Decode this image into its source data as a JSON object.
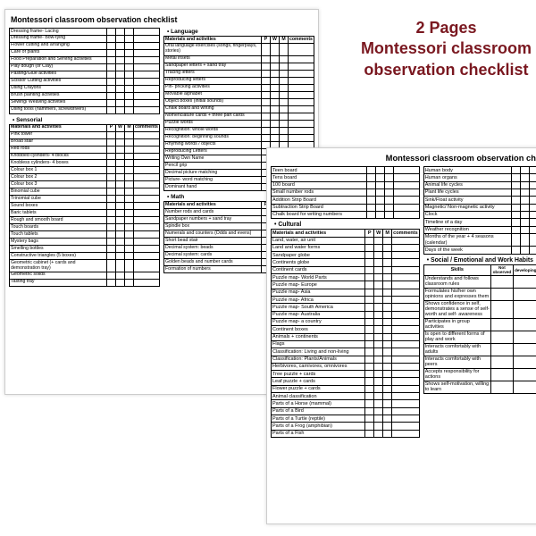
{
  "overlay": {
    "line1": "2 Pages",
    "line2": "Montessori classroom",
    "line3": "observation checklist"
  },
  "doc_title": "Montessori classroom observation checklist",
  "headers": {
    "mat": "Materials and activities",
    "p": "P",
    "w": "W",
    "m": "M",
    "comments": "comments"
  },
  "sections": {
    "practical": [
      "Dressing frame- Lacing",
      "Dressing frame- Bow-tying",
      "Flower cutting and arranging",
      "Care of plants",
      "Food Preparation and Serving activities",
      "Play dough (or Clay)",
      "Pasting/Glue activities",
      "Scissor Cutting activities",
      "Using Crayons",
      "Brush painting activities",
      "Sewing/ Weaving activities",
      "Using tools (hammers, screwdrivers)"
    ],
    "sensorial_label": "Sensorial",
    "sensorial": [
      "Pink tower",
      "Broad stair",
      "Red rods",
      "Knobbed cylinders- 4 blocks",
      "Knobless cylinders- 4 boxes",
      "Colour box 1",
      "Colour box 2",
      "Colour box 3",
      "Binomial cube",
      "Trinomial cube",
      "Sound boxes",
      "Baric tablets",
      "Rough and smooth board",
      "Touch boards",
      "Touch tablets",
      "Mystery bags",
      "Smelling bottles",
      "Constructive triangles (5 boxes)",
      "Geometric cabinet (+ cards and demonstration tray)",
      "Geometric solids",
      "Tasting tray"
    ],
    "language_label": "Language",
    "language": [
      "Oral language exercises (songs, fingerplays, stories)",
      "Metal insets",
      "Sandpaper letters + sand tray",
      "Tracing letters",
      "Reproducing letters",
      "Pin- pricking activities",
      "Movable alphabet",
      "Object boxes (initial sounds)",
      "Chalk board and writing",
      "Nomenclature cards + three part cards",
      "Puzzle words",
      "Recognition: whole words",
      "Recognition: beginning sounds",
      "Rhyming words / objects",
      "Reproducing Letters",
      "Writing Own Name",
      "Pencil grip",
      "Decimal picture matching",
      "Picture- word matching",
      "Dominant hand"
    ],
    "math_label": "Math",
    "math": [
      "Number rods and cards",
      "Sandpaper numbers + sand tray",
      "Spindle box",
      "Numerals and counters (Odds and evens)",
      "Short bead stair",
      "Decimal system: beads",
      "Decimal system: cards",
      "Golden beads and number cards",
      "Formation of numbers"
    ],
    "p2left_top": [
      "Teen board",
      "Tens board",
      "100 board",
      "Small number rods",
      "Addition Strip Board",
      "Subtraction Strip Board",
      "Chalk board for writing numbers"
    ],
    "cultural_label": "Cultural",
    "cultural": [
      "Land, water, air unit",
      "Land and water forms",
      "Sandpaper globe",
      "Continents globe",
      "Continent cards",
      "Puzzle map- World Parts",
      "Puzzle map- Europe",
      "Puzzle map- Asia",
      "Puzzle map- Africa",
      "Puzzle map- South America",
      "Puzzle map- Australia",
      "Puzzle map- a country",
      "Continent boxes",
      "Animals + continents",
      "Flags",
      "Classification: Living and non-living",
      "Classification: Plants/Animals",
      "Herbivores, carnivores, omnivores",
      "Tree puzzle + cards",
      "Leaf puzzle + cards",
      "Flower puzzle + cards",
      "Animal classification",
      "Parts of a Horse (mammal)",
      "Parts of a Bird",
      "Parts of a Turtle (reptile)",
      "Parts of a Frog (amphibian)",
      "Parts of a Fish"
    ],
    "p2right_top": [
      "Human body",
      "Human organs",
      "Animal life cycles",
      "Plant life cycles",
      "Sink/Float activity",
      "Magnetic/ Non-magnetic activity",
      "Clock",
      "Timeline of a day",
      "Weather recognition",
      "Months of the year + 4 seasons (calendar)",
      "Days of the week"
    ],
    "social_label": "Social / Emotional and Work Habits",
    "skills_header": {
      "sk": "Skills",
      "c1": "Not observed",
      "c2": "developing",
      "c3": "consistency"
    },
    "skills": [
      "Understands and follows classroom rules",
      "Formulates his/her own opinions and expresses them",
      "Shows confidence in self, demonstrates a sense of self- worth and self- awareness",
      "Participates in group activities",
      "Is open to different forms of play and work",
      "Interacts comfortably with adults",
      "Interacts comfortably with peers",
      "Accepts responsibility for actions",
      "Shows self-motivation, willing to learn"
    ],
    "p2far": [
      "He",
      "wit",
      "Co",
      "dif",
      "Re",
      "Ab",
      "Fo"
    ]
  }
}
